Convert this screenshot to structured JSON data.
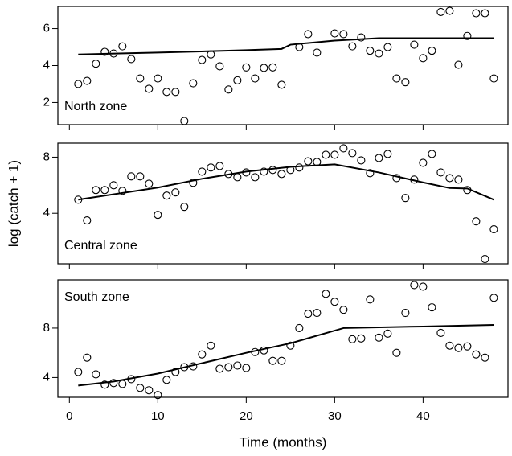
{
  "chart_data": [
    {
      "type": "scatter",
      "title": "North zone",
      "label_corner": "bottom-left",
      "x": [
        1,
        2,
        3,
        4,
        5,
        6,
        7,
        8,
        9,
        10,
        11,
        12,
        13,
        14,
        15,
        16,
        17,
        18,
        19,
        20,
        21,
        22,
        23,
        24,
        26,
        27,
        28,
        30,
        31,
        32,
        33,
        34,
        35,
        36,
        37,
        38,
        39,
        40,
        41,
        42,
        43,
        44,
        45,
        46,
        47,
        48
      ],
      "values": [
        3.0,
        3.17,
        4.1,
        4.74,
        4.65,
        5.04,
        4.35,
        3.3,
        2.74,
        3.3,
        2.57,
        2.57,
        1.0,
        3.04,
        4.3,
        4.6,
        3.96,
        2.7,
        3.2,
        3.9,
        3.3,
        3.87,
        3.9,
        2.96,
        5.0,
        5.7,
        4.7,
        5.74,
        5.7,
        5.04,
        5.52,
        4.8,
        4.65,
        5.0,
        3.3,
        3.1,
        5.13,
        4.4,
        4.8,
        6.9,
        6.96,
        4.04,
        5.6,
        6.83,
        6.83,
        3.3
      ],
      "line": {
        "x": [
          1,
          10,
          20,
          24,
          25,
          30,
          35,
          48
        ],
        "values": [
          4.6,
          4.7,
          4.83,
          4.9,
          5.13,
          5.35,
          5.48,
          5.48
        ]
      },
      "xlim": [
        -1.3,
        49.6
      ],
      "ylim": [
        0.8,
        7.2
      ],
      "yticks": [
        2,
        4,
        6
      ]
    },
    {
      "type": "scatter",
      "title": "Central zone",
      "label_corner": "bottom-left",
      "ylabel": "log (catch + 1)",
      "x": [
        1,
        2,
        3,
        4,
        5,
        6,
        7,
        8,
        9,
        10,
        11,
        12,
        13,
        14,
        15,
        16,
        17,
        18,
        19,
        20,
        21,
        22,
        23,
        24,
        25,
        26,
        27,
        28,
        29,
        30,
        31,
        32,
        33,
        34,
        35,
        36,
        37,
        38,
        39,
        40,
        41,
        42,
        43,
        44,
        45,
        46,
        47,
        48
      ],
      "values": [
        4.97,
        3.49,
        5.66,
        5.66,
        6.0,
        5.6,
        6.63,
        6.63,
        6.11,
        3.89,
        5.26,
        5.49,
        4.46,
        6.17,
        6.97,
        7.26,
        7.37,
        6.8,
        6.57,
        6.91,
        6.57,
        6.97,
        7.09,
        6.8,
        7.09,
        7.26,
        7.71,
        7.66,
        8.17,
        8.17,
        8.63,
        8.29,
        7.77,
        6.86,
        7.94,
        8.23,
        6.51,
        5.09,
        6.4,
        7.6,
        8.23,
        6.91,
        6.51,
        6.4,
        5.66,
        3.43,
        0.74,
        2.86
      ],
      "line": {
        "x": [
          1,
          10,
          15,
          20,
          25,
          30,
          35,
          40,
          43,
          45,
          48
        ],
        "values": [
          4.97,
          5.83,
          6.46,
          6.97,
          7.31,
          7.49,
          6.91,
          6.2,
          5.8,
          5.77,
          4.97
        ]
      },
      "xlim": [
        -1.3,
        49.6
      ],
      "ylim": [
        0.4,
        9.0
      ],
      "yticks": [
        4,
        8
      ]
    },
    {
      "type": "scatter",
      "title": "South zone",
      "label_corner": "top-left",
      "xlabel": "Time (months)",
      "x": [
        1,
        2,
        3,
        4,
        5,
        6,
        7,
        8,
        9,
        10,
        11,
        12,
        13,
        14,
        15,
        16,
        17,
        18,
        19,
        20,
        21,
        22,
        23,
        24,
        25,
        26,
        27,
        28,
        29,
        30,
        31,
        32,
        33,
        34,
        35,
        36,
        37,
        38,
        39,
        40,
        41,
        42,
        43,
        44,
        45,
        46,
        47,
        48
      ],
      "values": [
        4.45,
        5.61,
        4.26,
        3.42,
        3.55,
        3.48,
        3.87,
        3.16,
        2.97,
        2.58,
        3.81,
        4.45,
        4.84,
        4.9,
        5.87,
        6.58,
        4.71,
        4.84,
        4.97,
        4.77,
        6.06,
        6.19,
        5.35,
        5.35,
        6.58,
        8.0,
        9.16,
        9.23,
        10.77,
        10.13,
        9.48,
        7.1,
        7.16,
        10.32,
        7.23,
        7.55,
        6.0,
        9.23,
        11.48,
        11.35,
        9.68,
        7.61,
        6.58,
        6.39,
        6.52,
        5.87,
        5.61,
        10.45
      ],
      "line": {
        "x": [
          1,
          5,
          10,
          15,
          20,
          25,
          31,
          40,
          48
        ],
        "values": [
          3.35,
          3.68,
          4.32,
          5.16,
          6.0,
          6.77,
          8.0,
          8.13,
          8.26
        ]
      },
      "xlim": [
        -1.3,
        49.6
      ],
      "ylim": [
        2.4,
        11.9
      ],
      "yticks": [
        4,
        8
      ],
      "xticks": [
        0,
        10,
        20,
        30,
        40
      ]
    }
  ]
}
